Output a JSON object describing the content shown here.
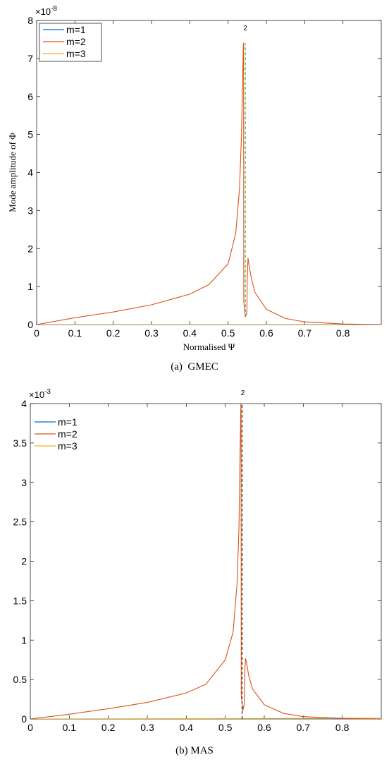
{
  "chart_data": [
    {
      "type": "line",
      "subplot_label": "(a)",
      "caption": "GMEC",
      "xlabel": "Normalised Ψ",
      "ylabel": "Mode amplitude of Φ",
      "xlim": [
        0,
        0.9
      ],
      "ylim": [
        0,
        8
      ],
      "y_exponent": "×10-8",
      "xticks": [
        "0",
        "0.1",
        "0.2",
        "0.3",
        "0.4",
        "0.5",
        "0.6",
        "0.7",
        "0.8"
      ],
      "yticks": [
        "0",
        "1",
        "2",
        "3",
        "4",
        "5",
        "6",
        "7",
        "8"
      ],
      "legend_position": "top-left",
      "annotation": {
        "text": "2",
        "x": 0.545
      },
      "resonance_line": {
        "x": 0.545,
        "y": [
          0.2,
          7.4
        ],
        "style": "dashed",
        "color": "#2ca02c"
      },
      "series": [
        {
          "name": "m=1",
          "color": "#0072BD",
          "x": [
            0,
            0.9
          ],
          "y": [
            0,
            0
          ]
        },
        {
          "name": "m=2",
          "color": "#D95319",
          "x": [
            0,
            0.1,
            0.2,
            0.3,
            0.4,
            0.45,
            0.5,
            0.52,
            0.53,
            0.535,
            0.54,
            0.5405,
            0.541,
            0.545,
            0.549,
            0.55,
            0.552,
            0.555,
            0.56,
            0.57,
            0.6,
            0.65,
            0.7,
            0.8,
            0.9
          ],
          "y": [
            0,
            0.18,
            0.33,
            0.52,
            0.8,
            1.05,
            1.6,
            2.4,
            3.6,
            5.0,
            7.4,
            7.4,
            0.6,
            0.2,
            0.3,
            1.2,
            1.75,
            1.55,
            1.25,
            0.85,
            0.4,
            0.16,
            0.07,
            0.015,
            0.0
          ]
        },
        {
          "name": "m=3",
          "color": "#EDB120",
          "x": [
            0,
            0.9
          ],
          "y": [
            0,
            0
          ]
        }
      ]
    },
    {
      "type": "line",
      "subplot_label": "(b)",
      "caption": "MAS",
      "xlabel": "",
      "ylabel": "",
      "xlim": [
        0,
        0.9
      ],
      "ylim": [
        0,
        0.004
      ],
      "y_exponent": "×10-3",
      "xticks": [
        "0",
        "0.1",
        "0.2",
        "0.3",
        "0.4",
        "0.5",
        "0.6",
        "0.7",
        "0.8"
      ],
      "yticks": [
        "0",
        "0.5",
        "1",
        "1.5",
        "2",
        "2.5",
        "3",
        "3.5",
        "4"
      ],
      "legend_position": "top-left",
      "annotation": {
        "text": "2",
        "x": 0.545
      },
      "resonance_line": {
        "x": 0.543,
        "y": [
          0,
          0.004
        ],
        "style": "dashed",
        "color": "#000000"
      },
      "series": [
        {
          "name": "m=1",
          "color": "#0072BD",
          "x": [
            0,
            0.9
          ],
          "y": [
            0,
            0
          ]
        },
        {
          "name": "m=2",
          "color": "#D95319",
          "x": [
            0,
            0.1,
            0.2,
            0.3,
            0.4,
            0.45,
            0.5,
            0.52,
            0.53,
            0.535,
            0.54,
            0.5405,
            0.541,
            0.545,
            0.549,
            0.55,
            0.552,
            0.555,
            0.56,
            0.57,
            0.6,
            0.65,
            0.7,
            0.8,
            0.9
          ],
          "y": [
            0,
            6e-05,
            0.00013,
            0.00021,
            0.00033,
            0.00044,
            0.00075,
            0.0011,
            0.0017,
            0.0024,
            0.004,
            0.004,
            0.0003,
            0.0001,
            0.0002,
            0.0006,
            0.00077,
            0.0007,
            0.00055,
            0.00038,
            0.00018,
            7e-05,
            3e-05,
            7e-06,
            0.0
          ]
        },
        {
          "name": "m=3",
          "color": "#EDB120",
          "x": [
            0,
            0.9
          ],
          "y": [
            0,
            1e-05
          ]
        }
      ]
    }
  ]
}
